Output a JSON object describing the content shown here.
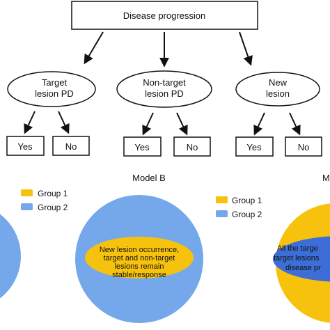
{
  "flowchart": {
    "root": "Disease progression",
    "branches": [
      {
        "line1": "Target",
        "line2": "lesion PD",
        "yes": "Yes",
        "no": "No"
      },
      {
        "line1": "Non-target",
        "line2": "lesion PD",
        "yes": "Yes",
        "no": "No"
      },
      {
        "line1": "New",
        "line2": "lesion",
        "yes": "Yes",
        "no": "No"
      }
    ]
  },
  "models": {
    "model_b_title": "Model B",
    "model_c_title_partial": "M",
    "legend_left": {
      "group1": "Group 1",
      "group2": "Group 2"
    },
    "legend_right": {
      "group1": "Group 1",
      "group2": "Group 2"
    },
    "model_b_inner": {
      "line1": "New lesion occurrence,",
      "line2": "target and non-target",
      "line3": "lesions remain",
      "line4": "stable/response"
    },
    "model_c_inner": {
      "line1": "All the targe",
      "line2": "target lesions",
      "line3": "disease pr"
    }
  },
  "colors": {
    "group1": "#F7C20E",
    "group2": "#74A8EA",
    "inner_blue": "#3D6DD6",
    "outline": "#111111"
  }
}
